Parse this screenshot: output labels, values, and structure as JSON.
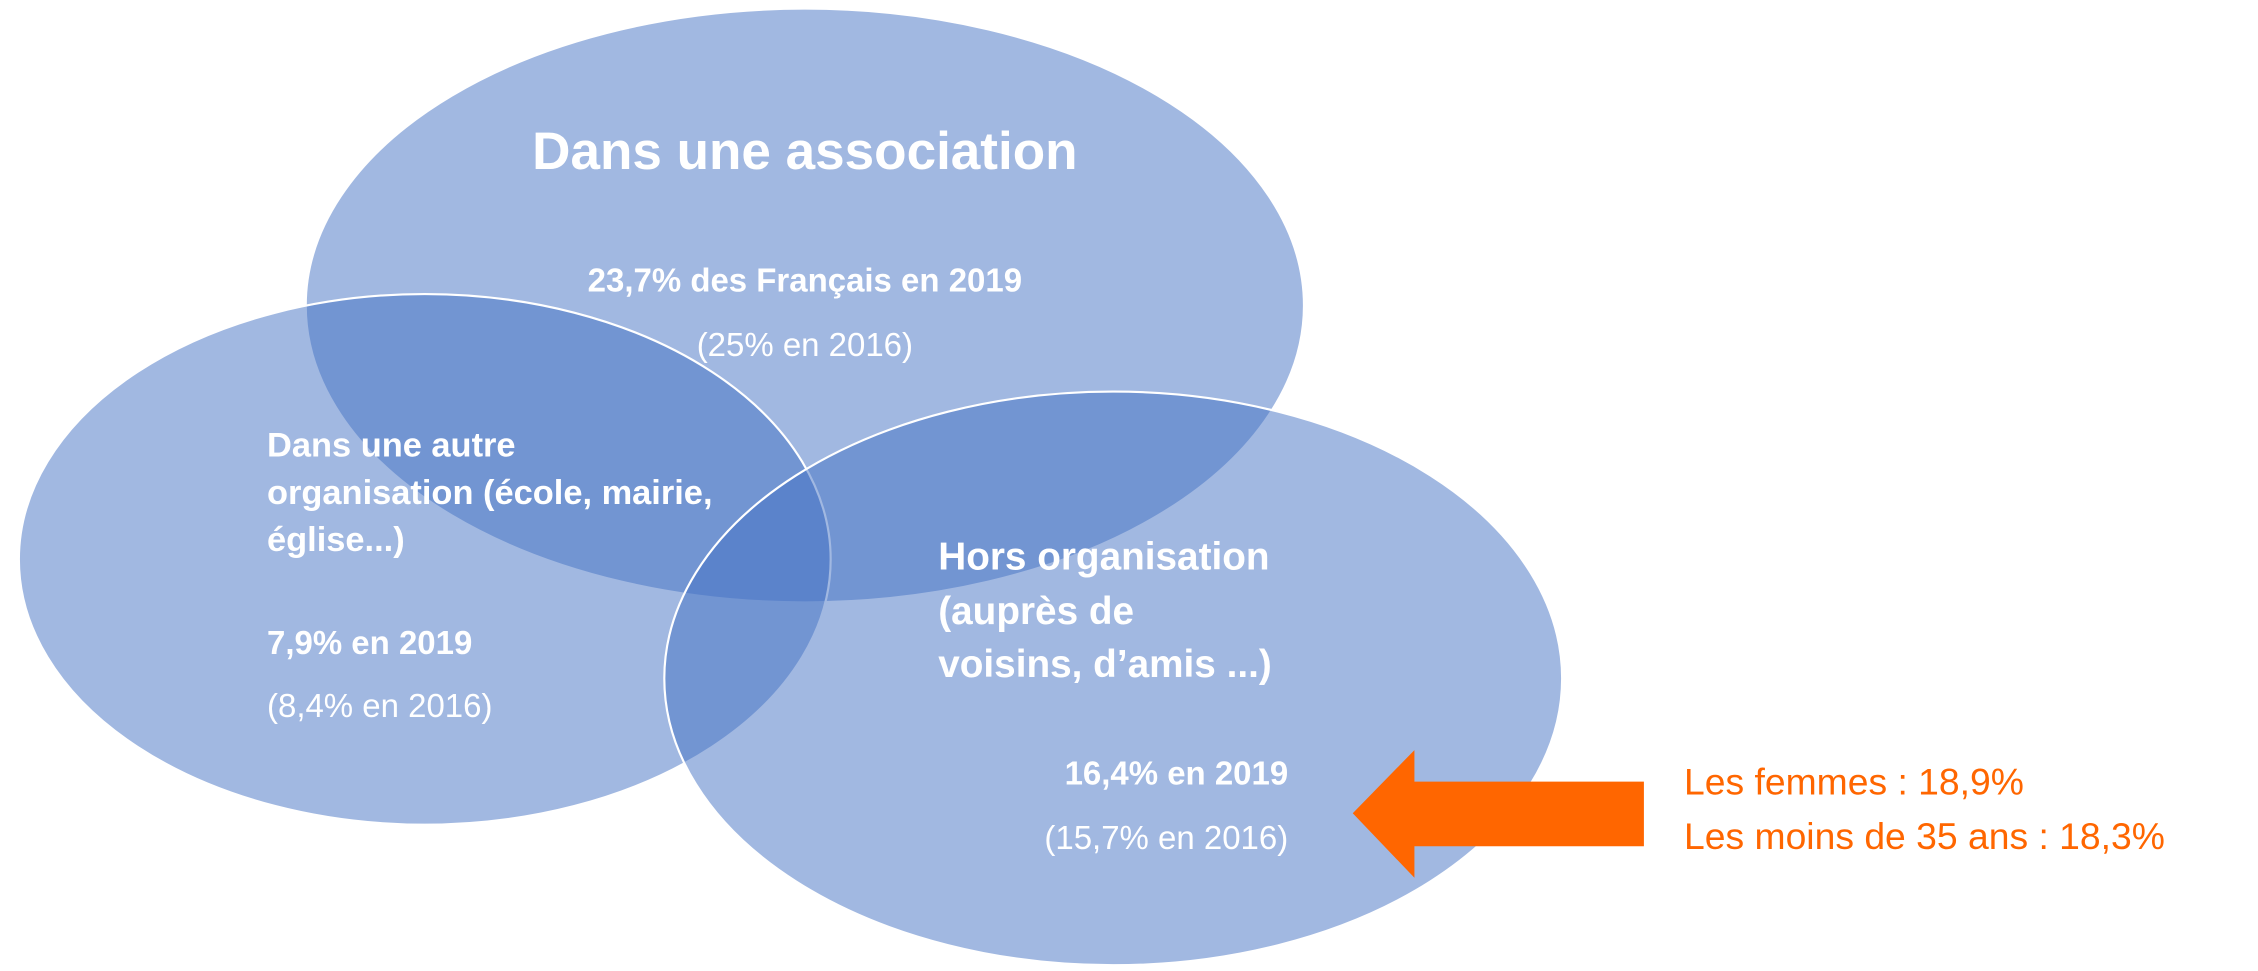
{
  "sets": [
    {
      "label": [
        "Dans une association"
      ],
      "value": "23,7% des Français en 2019",
      "previous": "(25% en 2016)"
    },
    {
      "label": [
        "Dans une autre",
        "organisation (école, mairie,",
        "église...)"
      ],
      "value": "7,9% en 2019",
      "previous": "(8,4% en 2016)"
    },
    {
      "label": [
        "Hors organisation",
        "(auprès de",
        "voisins, d’amis ...)"
      ],
      "value": "16,4% en 2019",
      "previous": "(15,7% en 2016)"
    }
  ],
  "note": [
    "Les femmes : 18,9%",
    "Les moins de 35 ans : 18,3%"
  ]
}
